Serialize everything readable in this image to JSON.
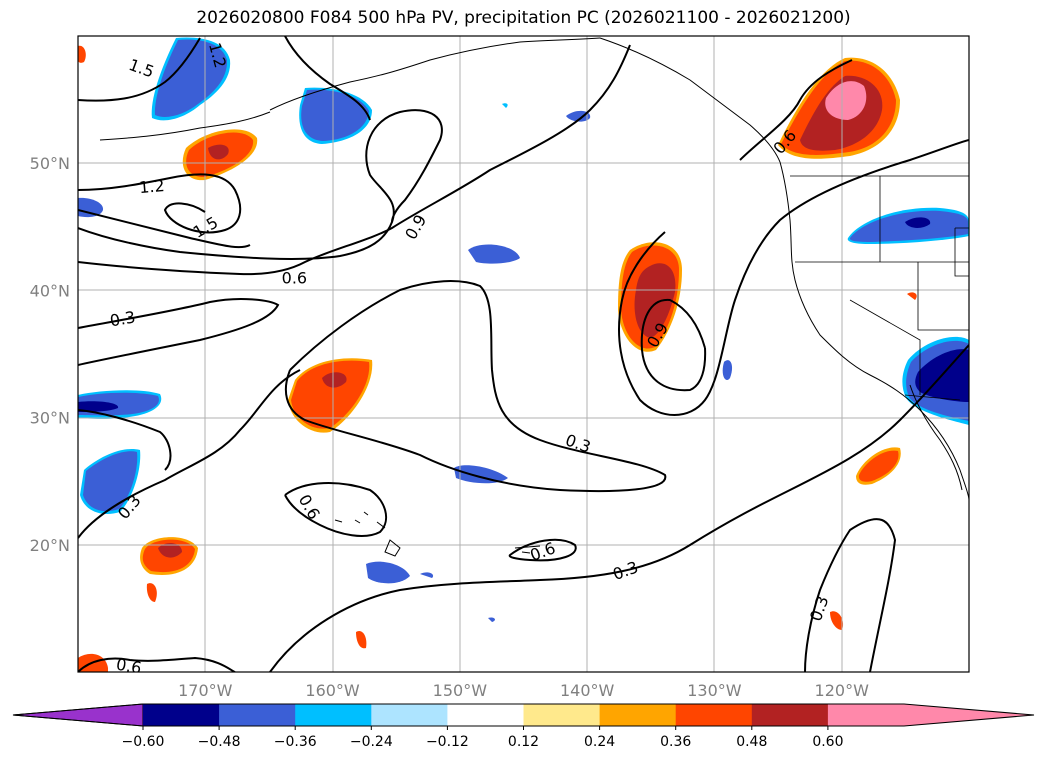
{
  "title": "2026020800 F084 500 hPa PV, precipitation PC (2026021100 - 2026021200)",
  "map": {
    "lat_labels": [
      {
        "text": "50°N",
        "lat": 50
      },
      {
        "text": "40°N",
        "lat": 40
      },
      {
        "text": "30°N",
        "lat": 30
      },
      {
        "text": "20°N",
        "lat": 20
      }
    ],
    "lon_labels": [
      {
        "text": "170°W",
        "lon": -170
      },
      {
        "text": "160°W",
        "lon": -160
      },
      {
        "text": "150°W",
        "lon": -150
      },
      {
        "text": "140°W",
        "lon": -140
      },
      {
        "text": "130°W",
        "lon": -130
      },
      {
        "text": "120°W",
        "lon": -120
      }
    ],
    "contour_labels": [
      {
        "text": "1.5",
        "lon": -175,
        "lat": 57.5,
        "rot": 20
      },
      {
        "text": "1.2",
        "lon": -169,
        "lat": 58.5,
        "rot": 75
      },
      {
        "text": "1.2",
        "lon": -174.2,
        "lat": 48.2,
        "rot": -5
      },
      {
        "text": "1.5",
        "lon": -170,
        "lat": 45,
        "rot": -30
      },
      {
        "text": "0.9",
        "lon": -153.5,
        "lat": 45,
        "rot": -60
      },
      {
        "text": "0.6",
        "lon": -163,
        "lat": 41,
        "rot": 0
      },
      {
        "text": "0.3",
        "lon": -176.5,
        "lat": 37.8,
        "rot": -10
      },
      {
        "text": "0.6",
        "lon": -124.5,
        "lat": 51.7,
        "rot": -50
      },
      {
        "text": "0.9",
        "lon": -134.5,
        "lat": 36.5,
        "rot": -60
      },
      {
        "text": "0.3",
        "lon": -140.7,
        "lat": 28,
        "rot": 20
      },
      {
        "text": "0.6",
        "lon": -161.8,
        "lat": 23,
        "rot": 60
      },
      {
        "text": "0.3",
        "lon": -176,
        "lat": 23,
        "rot": -50
      },
      {
        "text": "0.6",
        "lon": -143.5,
        "lat": 19.5,
        "rot": -20
      },
      {
        "text": "0.3",
        "lon": -137,
        "lat": 18,
        "rot": -20
      },
      {
        "text": "0.3",
        "lon": -121.8,
        "lat": 15,
        "rot": -70
      },
      {
        "text": "0.6",
        "lon": -176,
        "lat": 10.5,
        "rot": 10
      }
    ]
  },
  "colorbar": {
    "tick_labels": [
      "−0.60",
      "−0.48",
      "−0.36",
      "−0.24",
      "−0.12",
      "0.12",
      "0.24",
      "0.36",
      "0.48",
      "0.60"
    ],
    "under_color": "#9932cc",
    "over_color": "#ff88aa",
    "colors": [
      "#00008b",
      "#3b5fd6",
      "#00bfff",
      "#ade4ff",
      "#ffffff",
      "#ffe98c",
      "#ffa500",
      "#ff4500",
      "#b22222",
      "#ff88aa"
    ],
    "boundaries": [
      -0.6,
      -0.48,
      -0.36,
      -0.24,
      -0.12,
      0.12,
      0.24,
      0.36,
      0.48,
      0.6
    ]
  }
}
